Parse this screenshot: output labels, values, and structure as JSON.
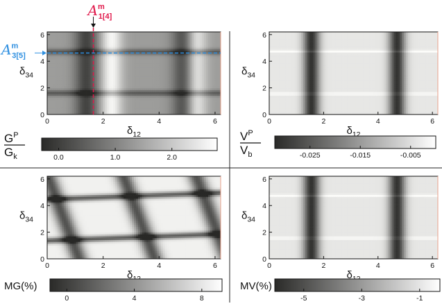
{
  "figure": {
    "annotations": {
      "vertical_line": {
        "symbol": "A",
        "sup": "m",
        "sub": "1[4]",
        "x_value": 1.65,
        "color": "#e0194b"
      },
      "horizontal_line": {
        "symbol": "A",
        "sup": "m",
        "sub": "3[5]",
        "y_value": 4.62,
        "color": "#2e8fe0"
      }
    }
  },
  "chart_data": [
    {
      "type": "heatmap",
      "panel": "top-left",
      "xlabel": "δ12",
      "ylabel": "δ34",
      "xlim": [
        0,
        6.2
      ],
      "ylim": [
        0,
        6.2
      ],
      "xticks": [
        "0",
        "2",
        "4",
        "6"
      ],
      "yticks": [
        "0",
        "2",
        "4",
        "6"
      ],
      "colorbar": {
        "label_num": "G",
        "label_num_sup": "P",
        "label_den": "G",
        "label_den_sub": "k",
        "ticks": [
          "0.0",
          "1.0",
          "2.0"
        ],
        "tick_values": [
          0.0,
          1.0,
          2.0
        ],
        "range": [
          -0.3,
          2.8
        ]
      },
      "pattern": {
        "dark_x": [
          1.4,
          4.9
        ],
        "bright_x": [
          2.3,
          5.3
        ],
        "dark_y": [
          1.6,
          4.7
        ]
      }
    },
    {
      "type": "heatmap",
      "panel": "top-right",
      "xlabel": "δ12",
      "ylabel": "δ34",
      "xlim": [
        0,
        6.2
      ],
      "ylim": [
        0,
        6.2
      ],
      "xticks": [
        "0",
        "2",
        "4",
        "6"
      ],
      "yticks": [
        "0",
        "2",
        "4",
        "6"
      ],
      "colorbar": {
        "label_num": "V",
        "label_num_sup": "P",
        "label_den": "V",
        "label_den_sub": "b",
        "ticks": [
          "-0.025",
          "-0.015",
          "-0.005"
        ],
        "tick_values": [
          -0.025,
          -0.015,
          -0.005
        ],
        "range": [
          -0.032,
          0.0
        ]
      },
      "pattern": {
        "dark_x": [
          1.55,
          4.7
        ],
        "bright_y": [
          1.55,
          4.75
        ]
      }
    },
    {
      "type": "heatmap",
      "panel": "bottom-left",
      "xlabel": "δ12",
      "ylabel": "δ34",
      "xlim": [
        0,
        6.2
      ],
      "ylim": [
        0,
        6.2
      ],
      "xticks": [
        "0",
        "2",
        "4",
        "6"
      ],
      "yticks": [
        "0",
        "2",
        "4",
        "6"
      ],
      "colorbar": {
        "label": "MG(%)",
        "ticks": [
          "0",
          "4",
          "8"
        ],
        "tick_values": [
          0,
          4,
          8
        ],
        "range": [
          -1,
          9.2
        ]
      },
      "pattern": {
        "dark_x": [
          0.6,
          3.3,
          5.9
        ],
        "dark_y": [
          1.6,
          4.7
        ]
      }
    },
    {
      "type": "heatmap",
      "panel": "bottom-right",
      "xlabel": "δ12",
      "ylabel": "δ34",
      "xlim": [
        0,
        6.2
      ],
      "ylim": [
        0,
        6.2
      ],
      "xticks": [
        "0",
        "2",
        "4",
        "6"
      ],
      "yticks": [
        "0",
        "2",
        "4",
        "6"
      ],
      "colorbar": {
        "label": "MV(%)",
        "ticks": [
          "-5",
          "-3",
          "-1"
        ],
        "tick_values": [
          -5,
          -3,
          -1
        ],
        "range": [
          -6,
          -0.3
        ]
      },
      "pattern": {
        "dark_x": [
          1.55,
          4.7
        ],
        "bright_y": [
          1.55,
          4.75
        ]
      }
    }
  ]
}
